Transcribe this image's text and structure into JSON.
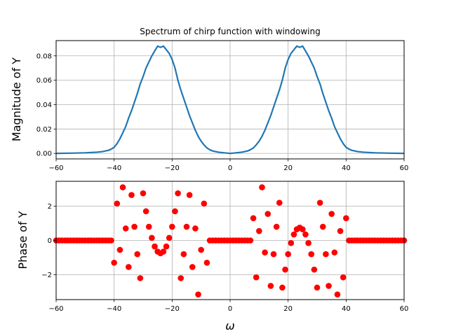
{
  "chart_data": [
    {
      "type": "line",
      "title": "Spectrum of chirp function with windowing",
      "xlabel": "",
      "ylabel": "Magnitude of Y",
      "xlim": [
        -60,
        60
      ],
      "ylim": [
        -0.0045,
        0.0925
      ],
      "grid": true,
      "color": "#1f77b4",
      "xticks": [
        -60,
        -40,
        -20,
        0,
        20,
        40,
        60
      ],
      "xtick_labels": [
        "−60",
        "−40",
        "−20",
        "0",
        "20",
        "40",
        "60"
      ],
      "yticks": [
        0.0,
        0.02,
        0.04,
        0.06,
        0.08
      ],
      "ytick_labels": [
        "0.00",
        "0.02",
        "0.04",
        "0.06",
        "0.08"
      ],
      "series": [
        {
          "x": [
            -60,
            -55,
            -50,
            -46,
            -44,
            -42,
            -41,
            -40,
            -39,
            -38,
            -37,
            -36,
            -35,
            -34,
            -33,
            -32,
            -31,
            -30,
            -29,
            -28,
            -27,
            -26,
            -25,
            -24,
            -23,
            -22,
            -21,
            -20,
            -19,
            -18,
            -17,
            -16,
            -15,
            -14,
            -13,
            -12,
            -11,
            -10,
            -9,
            -8,
            -7,
            -6,
            -4,
            -2,
            0,
            2,
            4,
            6,
            7,
            8,
            9,
            10,
            11,
            12,
            13,
            14,
            15,
            16,
            17,
            18,
            19,
            20,
            21,
            22,
            23,
            24,
            25,
            26,
            27,
            28,
            29,
            30,
            31,
            32,
            33,
            34,
            35,
            36,
            37,
            38,
            39,
            40,
            41,
            42,
            44,
            46,
            50,
            55,
            60
          ],
          "y": [
            0.0,
            0.0002,
            0.0005,
            0.001,
            0.0015,
            0.0025,
            0.0035,
            0.005,
            0.008,
            0.012,
            0.017,
            0.022,
            0.029,
            0.035,
            0.042,
            0.049,
            0.057,
            0.063,
            0.07,
            0.075,
            0.08,
            0.084,
            0.088,
            0.087,
            0.088,
            0.085,
            0.082,
            0.077,
            0.07,
            0.06,
            0.052,
            0.045,
            0.038,
            0.031,
            0.025,
            0.019,
            0.014,
            0.01,
            0.007,
            0.0045,
            0.003,
            0.002,
            0.001,
            0.0005,
            0.0,
            0.0005,
            0.001,
            0.002,
            0.003,
            0.0045,
            0.007,
            0.01,
            0.014,
            0.019,
            0.025,
            0.031,
            0.038,
            0.045,
            0.052,
            0.06,
            0.07,
            0.077,
            0.082,
            0.085,
            0.088,
            0.087,
            0.088,
            0.084,
            0.08,
            0.075,
            0.07,
            0.063,
            0.057,
            0.049,
            0.042,
            0.035,
            0.029,
            0.022,
            0.017,
            0.012,
            0.008,
            0.005,
            0.0035,
            0.0025,
            0.0015,
            0.001,
            0.0005,
            0.0002,
            0.0
          ]
        }
      ]
    },
    {
      "type": "scatter",
      "title": "",
      "xlabel": "ω",
      "ylabel": "Phase of Y",
      "xlim": [
        -60,
        60
      ],
      "ylim": [
        -3.45,
        3.45
      ],
      "grid": true,
      "color": "#ff0000",
      "xticks": [
        -60,
        -40,
        -20,
        0,
        20,
        40,
        60
      ],
      "xtick_labels": [
        "−60",
        "−40",
        "−20",
        "0",
        "20",
        "40",
        "60"
      ],
      "yticks": [
        -2,
        0,
        2
      ],
      "ytick_labels": [
        "−2",
        "0",
        "2"
      ],
      "series": [
        {
          "x": [
            -60,
            -59,
            -58,
            -57,
            -56,
            -55,
            -54,
            -53,
            -52,
            -51,
            -50,
            -49,
            -48,
            -47,
            -46,
            -45,
            -44,
            -43,
            -42,
            -41,
            -40,
            -39,
            -38,
            -37,
            -36,
            -35,
            -34,
            -33,
            -32,
            -31,
            -30,
            -29,
            -28,
            -27,
            -26,
            -25,
            -24,
            -23,
            -22,
            -21,
            -20,
            -19,
            -18,
            -17,
            -16,
            -15,
            -14,
            -13,
            -12,
            -11,
            -10,
            -9,
            -8,
            -7,
            -6,
            -5,
            -4,
            -3,
            -2,
            -1,
            0,
            1,
            2,
            3,
            4,
            5,
            6,
            7,
            8,
            9,
            10,
            11,
            12,
            13,
            14,
            15,
            16,
            17,
            18,
            19,
            20,
            21,
            22,
            23,
            24,
            25,
            26,
            27,
            28,
            29,
            30,
            31,
            32,
            33,
            34,
            35,
            36,
            37,
            38,
            39,
            40,
            41,
            42,
            43,
            44,
            45,
            46,
            47,
            48,
            49,
            50,
            51,
            52,
            53,
            54,
            55,
            56,
            57,
            58,
            59,
            60
          ],
          "y": [
            0,
            0,
            0,
            0,
            0,
            0,
            0,
            0,
            0,
            0,
            0,
            0,
            0,
            0,
            0,
            0,
            0,
            0,
            0,
            0,
            -1.3,
            2.15,
            -0.55,
            3.1,
            0.7,
            -1.55,
            2.65,
            0.8,
            -0.8,
            -2.2,
            2.75,
            1.7,
            0.8,
            0.15,
            -0.35,
            -0.65,
            -0.75,
            -0.65,
            -0.35,
            0.15,
            0.8,
            1.7,
            2.75,
            -2.2,
            -0.8,
            0.8,
            2.65,
            -1.55,
            0.7,
            -3.15,
            -0.55,
            2.15,
            -1.3,
            0,
            0,
            0,
            0,
            0,
            0,
            0,
            0,
            0,
            0,
            0,
            0,
            0,
            0,
            0,
            1.3,
            -2.15,
            0.55,
            3.1,
            -0.7,
            1.55,
            -2.65,
            -0.8,
            0.8,
            2.2,
            -2.75,
            -1.7,
            -0.8,
            -0.15,
            0.35,
            0.65,
            0.75,
            0.65,
            0.35,
            -0.15,
            -0.8,
            -1.7,
            -2.75,
            2.2,
            0.8,
            -0.8,
            -2.65,
            1.55,
            -0.7,
            -3.15,
            0.55,
            -2.15,
            1.3,
            0,
            0,
            0,
            0,
            0,
            0,
            0,
            0,
            0,
            0,
            0,
            0,
            0,
            0,
            0,
            0,
            0,
            0,
            0,
            0
          ]
        }
      ]
    }
  ]
}
